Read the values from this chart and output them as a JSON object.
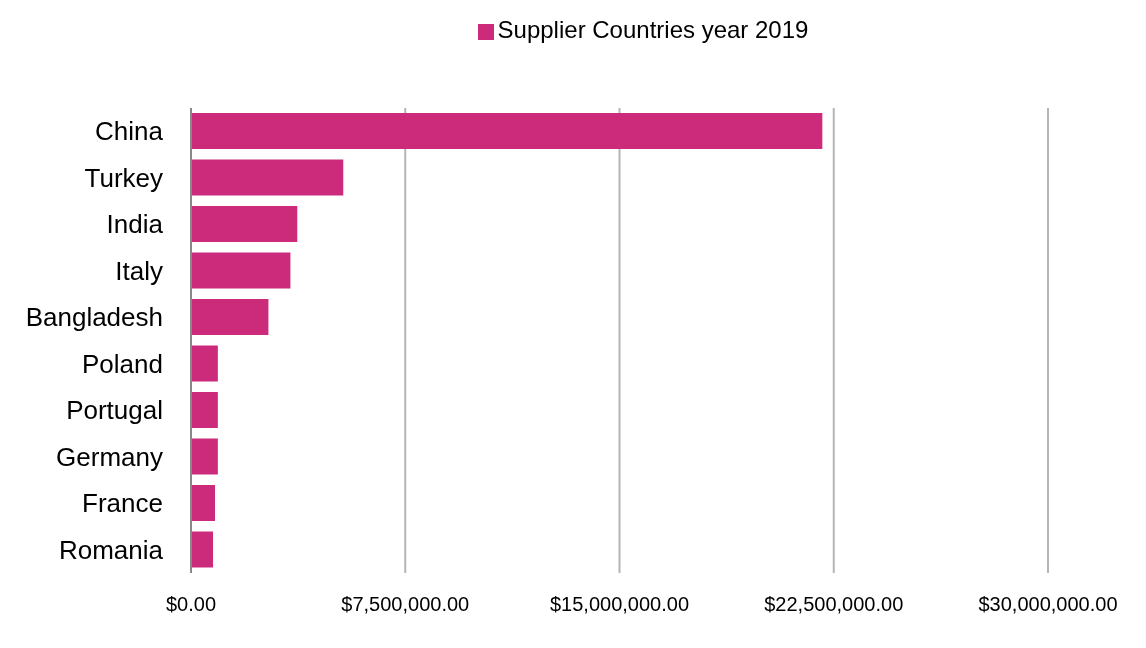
{
  "chart_data": {
    "type": "bar",
    "orientation": "horizontal",
    "categories": [
      "China",
      "Turkey",
      "India",
      "Italy",
      "Bangladesh",
      "Poland",
      "Portugal",
      "Germany",
      "France",
      "Romania"
    ],
    "series": [
      {
        "name": "Supplier Countries year 2019",
        "color": "#cc2a7a",
        "values": [
          22100000,
          5330000,
          3720000,
          3480000,
          2710000,
          940000,
          940000,
          940000,
          840000,
          770000
        ]
      }
    ],
    "xlim": [
      0,
      30000000
    ],
    "xticks": [
      {
        "value": 0,
        "label": "$0.00"
      },
      {
        "value": 7500000,
        "label": "$7,500,000.00"
      },
      {
        "value": 15000000,
        "label": "$15,000,000.00"
      },
      {
        "value": 22500000,
        "label": "$22,500,000.00"
      },
      {
        "value": 30000000,
        "label": "$30,000,000.00"
      }
    ],
    "grid": "x",
    "legend": "top"
  }
}
